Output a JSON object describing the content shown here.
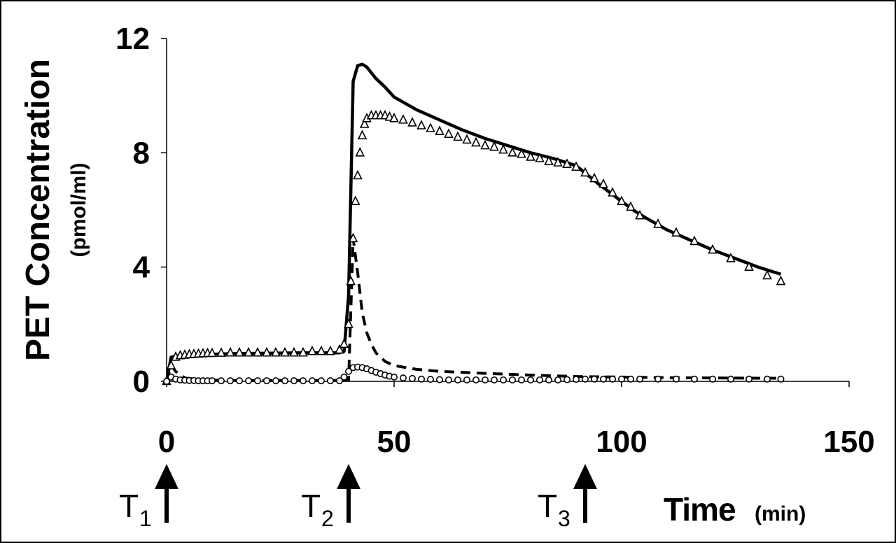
{
  "chart_data": {
    "type": "line",
    "title": "",
    "ylabel": "PET Concentration",
    "ylabel_unit": "(pmol/ml)",
    "xlabel": "Time",
    "xlabel_unit": "(min)",
    "xlim": [
      0,
      150
    ],
    "ylim": [
      0,
      12
    ],
    "xticks": [
      "0",
      "50",
      "100",
      "150"
    ],
    "yticks": [
      "0",
      "4",
      "8",
      "12"
    ],
    "grid": false,
    "legend": "none",
    "markers": [
      {
        "label": "T",
        "sub": "1",
        "x": 0
      },
      {
        "label": "T",
        "sub": "2",
        "x": 40
      },
      {
        "label": "T",
        "sub": "3",
        "x": 92
      }
    ],
    "series": [
      {
        "style": "solid",
        "x": [
          0,
          1,
          3,
          6,
          10,
          15,
          20,
          25,
          30,
          35,
          38,
          39,
          40,
          41,
          42,
          43,
          44,
          45,
          46,
          48,
          50,
          55,
          60,
          65,
          70,
          75,
          80,
          85,
          90,
          95,
          100,
          103,
          105,
          110,
          115,
          120,
          125,
          130,
          135
        ],
        "y": [
          0,
          0.85,
          0.9,
          0.93,
          0.95,
          0.97,
          0.98,
          0.99,
          1.0,
          1.0,
          1.0,
          1.05,
          3.0,
          10.5,
          11.05,
          11.1,
          11.0,
          10.8,
          10.6,
          10.3,
          9.95,
          9.5,
          9.15,
          8.8,
          8.5,
          8.25,
          8.0,
          7.8,
          7.55,
          6.9,
          6.3,
          5.95,
          5.75,
          5.3,
          4.95,
          4.6,
          4.3,
          4.0,
          3.75
        ]
      },
      {
        "style": "dashed",
        "x": [
          0,
          1,
          2,
          4,
          8,
          15,
          25,
          35,
          39,
          40,
          41,
          42,
          43,
          44,
          45,
          46,
          48,
          50,
          55,
          60,
          70,
          80,
          90,
          100,
          110,
          120,
          130,
          135
        ],
        "y": [
          0,
          0.55,
          0.35,
          0.12,
          0.05,
          0.03,
          0.03,
          0.03,
          0.03,
          0.05,
          5.0,
          3.8,
          2.4,
          1.7,
          1.3,
          1.0,
          0.7,
          0.55,
          0.42,
          0.35,
          0.28,
          0.22,
          0.17,
          0.15,
          0.13,
          0.12,
          0.11,
          0.11
        ]
      },
      {
        "style": "triangle",
        "x": [
          0,
          1,
          2,
          3,
          4,
          5,
          6,
          7,
          8,
          9,
          10,
          12,
          14,
          16,
          18,
          20,
          22,
          24,
          26,
          28,
          30,
          32,
          34,
          36,
          38,
          39,
          40,
          40.5,
          41,
          41.5,
          42,
          42.5,
          43,
          43.5,
          44,
          45,
          46,
          47,
          48,
          49,
          50,
          52,
          54,
          56,
          58,
          60,
          62,
          64,
          66,
          68,
          70,
          72,
          74,
          76,
          78,
          80,
          82,
          84,
          86,
          88,
          90,
          92,
          94,
          96,
          98,
          100,
          102,
          104,
          108,
          112,
          116,
          120,
          124,
          128,
          132,
          135
        ],
        "y": [
          0,
          0.55,
          0.85,
          0.9,
          0.92,
          0.94,
          0.95,
          0.96,
          0.97,
          0.98,
          0.98,
          0.99,
          1.0,
          1.0,
          1.0,
          1.0,
          1.0,
          1.0,
          1.0,
          1.0,
          1.0,
          1.05,
          1.05,
          1.05,
          1.1,
          1.3,
          2.0,
          3.5,
          5.0,
          6.3,
          7.2,
          8.0,
          8.6,
          9.0,
          9.2,
          9.3,
          9.3,
          9.3,
          9.3,
          9.25,
          9.2,
          9.15,
          9.05,
          8.95,
          8.85,
          8.75,
          8.65,
          8.55,
          8.45,
          8.35,
          8.25,
          8.2,
          8.1,
          8.0,
          7.95,
          7.85,
          7.8,
          7.7,
          7.65,
          7.6,
          7.5,
          7.3,
          7.1,
          6.9,
          6.6,
          6.3,
          6.1,
          5.8,
          5.5,
          5.2,
          4.9,
          4.6,
          4.3,
          4.0,
          3.7,
          3.5
        ]
      },
      {
        "style": "circle",
        "x": [
          0,
          1,
          2,
          3,
          4,
          5,
          6,
          7,
          8,
          9,
          10,
          12,
          14,
          16,
          18,
          20,
          22,
          24,
          26,
          28,
          30,
          32,
          34,
          36,
          38,
          39,
          40,
          41,
          42,
          43,
          44,
          45,
          46,
          47,
          48,
          49,
          50,
          52,
          54,
          56,
          58,
          60,
          62,
          64,
          66,
          68,
          70,
          72,
          74,
          76,
          78,
          80,
          82,
          84,
          86,
          88,
          90,
          92,
          94,
          96,
          98,
          100,
          102,
          104,
          108,
          112,
          116,
          120,
          124,
          128,
          132,
          135
        ],
        "y": [
          0,
          0.15,
          0.08,
          0.05,
          0.04,
          0.03,
          0.03,
          0.02,
          0.02,
          0.02,
          0.02,
          0.02,
          0.02,
          0.02,
          0.02,
          0.02,
          0.02,
          0.02,
          0.02,
          0.02,
          0.02,
          0.02,
          0.02,
          0.02,
          0.02,
          0.15,
          0.35,
          0.48,
          0.5,
          0.48,
          0.44,
          0.38,
          0.32,
          0.27,
          0.22,
          0.18,
          0.15,
          0.12,
          0.1,
          0.08,
          0.07,
          0.06,
          0.05,
          0.05,
          0.05,
          0.05,
          0.05,
          0.05,
          0.05,
          0.05,
          0.05,
          0.05,
          0.05,
          0.05,
          0.05,
          0.06,
          0.07,
          0.08,
          0.08,
          0.08,
          0.08,
          0.08,
          0.08,
          0.08,
          0.08,
          0.08,
          0.08,
          0.08,
          0.08,
          0.08,
          0.08,
          0.08
        ]
      }
    ]
  }
}
